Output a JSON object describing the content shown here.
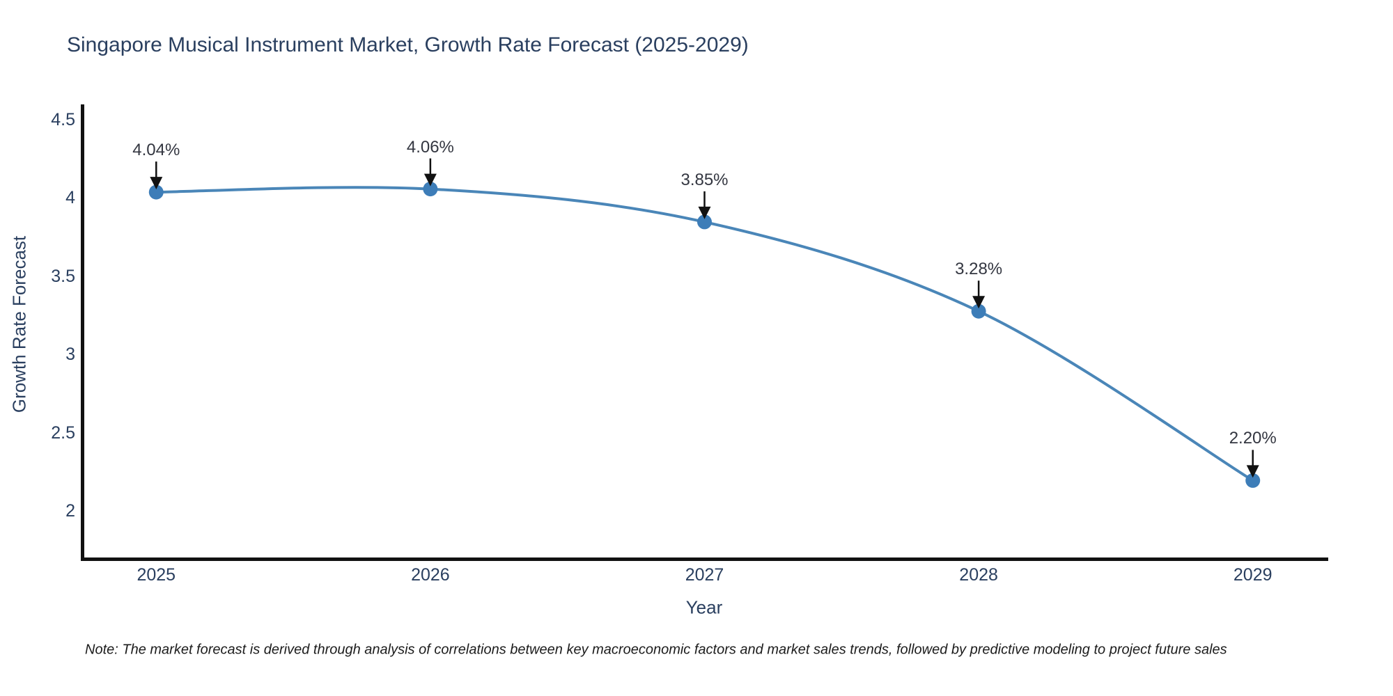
{
  "chart_data": {
    "type": "line",
    "title": "Singapore Musical Instrument Market, Growth Rate Forecast (2025-2029)",
    "xlabel": "Year",
    "ylabel": "Growth Rate Forecast",
    "x": [
      2025,
      2026,
      2027,
      2028,
      2029
    ],
    "values": [
      4.04,
      4.06,
      3.85,
      3.28,
      2.2
    ],
    "point_labels": [
      "4.04%",
      "4.06%",
      "3.85%",
      "3.28%",
      "2.20%"
    ],
    "xtick_labels": [
      "2025",
      "2026",
      "2027",
      "2028",
      "2029"
    ],
    "yticks": [
      2,
      2.5,
      3,
      3.5,
      4,
      4.5
    ],
    "ytick_labels": [
      "2",
      "2.5",
      "3",
      "3.5",
      "4",
      "4.5"
    ],
    "ylim": [
      1.7,
      4.6
    ],
    "xlim": [
      2024.73,
      2029.27
    ],
    "grid": false,
    "legend": false,
    "line_shape": "spline",
    "line_color": "#4a86b8",
    "marker_color": "#3d7db8",
    "axis_color": "#111111",
    "arrow_color": "#111111",
    "title_color": "#2a3f5f",
    "note": "Note: The market forecast is derived through analysis of correlations between key macroeconomic factors and market sales trends, followed by predictive modeling to project future sales"
  }
}
